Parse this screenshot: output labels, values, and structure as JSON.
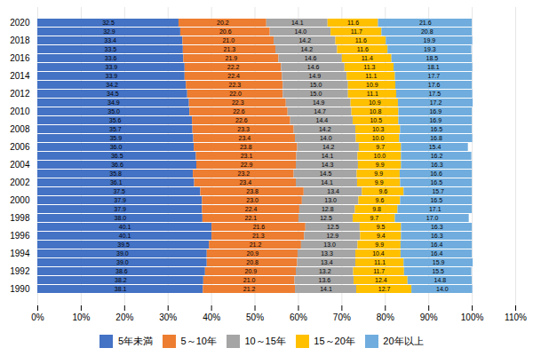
{
  "chart_data": {
    "type": "bar",
    "orientation": "horizontal",
    "stacked": true,
    "data_labels": true,
    "grid": true,
    "legend": "bottom",
    "categories": [
      "2020",
      null,
      "2018",
      null,
      "2016",
      null,
      "2014",
      null,
      "2012",
      null,
      "2010",
      null,
      "2008",
      null,
      "2006",
      null,
      "2004",
      null,
      "2002",
      null,
      "2000",
      null,
      "1998",
      null,
      "1996",
      null,
      "1994",
      null,
      "1992",
      null,
      "1990"
    ],
    "series": [
      {
        "name": "5年未満",
        "color": "#4472C4",
        "values": [
          32.5,
          32.9,
          33.4,
          33.5,
          33.6,
          33.9,
          33.9,
          34.2,
          34.5,
          34.9,
          35.0,
          35.6,
          35.7,
          35.9,
          36.0,
          36.5,
          36.6,
          35.8,
          36.1,
          37.5,
          37.9,
          37.9,
          38.0,
          40.1,
          40.1,
          39.5,
          39.0,
          39.0,
          38.6,
          38.2,
          38.1
        ],
        "value_labels": [
          "32.5",
          "32.9",
          "33.4",
          "33.5",
          "33.6",
          "33.9",
          "33.9",
          "34.2",
          "34.5",
          "34.9",
          "35.0",
          "35.6",
          "35.7",
          "35.9",
          "36.0",
          "36.5",
          "36.6",
          "35.8",
          "36.1",
          "37.5",
          "37.9",
          "37.9",
          "38.0",
          "40.1",
          "40.1",
          "39.5",
          "39.0",
          "39.0",
          "38.6",
          "38.2",
          "38.1"
        ]
      },
      {
        "name": "5～10年",
        "color": "#ED7D31",
        "values": [
          20.2,
          20.6,
          21.0,
          21.3,
          21.9,
          22.2,
          22.4,
          22.3,
          22.0,
          22.3,
          22.6,
          22.6,
          23.3,
          23.4,
          23.8,
          23.1,
          22.9,
          23.2,
          23.4,
          23.8,
          23.0,
          22.4,
          22.1,
          21.6,
          21.3,
          21.2,
          20.9,
          20.8,
          20.9,
          21.0,
          21.2
        ],
        "value_labels": [
          "20.2",
          "20.6",
          "21.0",
          "21.3",
          "21.9",
          "22.2",
          "22.4",
          "22.3",
          "22.0",
          "22.3",
          "22.6",
          "22.6",
          "23.3",
          "23.4",
          "23.8",
          "23.1",
          "22.9",
          "23.2",
          "23.4",
          "23.8",
          "23.0",
          "22.4",
          "22.1",
          "21.6",
          "21.3",
          "21.2",
          "20.9",
          "20.8",
          "20.9",
          "21.0",
          "21.2"
        ]
      },
      {
        "name": "10～15年",
        "color": "#A5A5A5",
        "values": [
          14.1,
          14.0,
          14.2,
          14.2,
          14.6,
          14.6,
          14.9,
          15.0,
          15.0,
          14.9,
          14.7,
          14.4,
          14.2,
          14.0,
          14.2,
          14.1,
          14.3,
          14.5,
          14.1,
          13.4,
          13.0,
          12.8,
          12.5,
          12.5,
          12.9,
          13.0,
          13.3,
          13.4,
          13.2,
          13.6,
          14.1
        ],
        "value_labels": [
          "14.1",
          "14.0",
          "14.2",
          "14.2",
          "14.6",
          "14.6",
          "14.9",
          "15.0",
          "15.0",
          "14.9",
          "14.7",
          "14.4",
          "14.2",
          "14.0",
          "14.2",
          "14.1",
          "14.3",
          "14.5",
          "14.1",
          "13.4",
          "13.0",
          "12.8",
          "12.5",
          "12.5",
          "12.9",
          "13.0",
          "13.3",
          "13.4",
          "13.2",
          "13.6",
          "14.1"
        ]
      },
      {
        "name": "15～20年",
        "color": "#FFC000",
        "values": [
          11.6,
          11.7,
          11.6,
          11.6,
          11.4,
          11.3,
          11.1,
          10.9,
          11.1,
          10.9,
          10.8,
          10.5,
          10.3,
          10.0,
          9.7,
          10.0,
          9.9,
          9.9,
          9.9,
          9.6,
          9.6,
          9.8,
          9.7,
          9.5,
          9.4,
          9.9,
          10.4,
          11.1,
          11.7,
          12.4,
          12.7
        ],
        "value_labels": [
          "11.6",
          "11.7",
          "11.6",
          "11.6",
          "11.4",
          "11.3",
          "11.1",
          "10.9",
          "11.1",
          "10.9",
          "10.8",
          "10.5",
          "10.3",
          "10.0",
          "9.7",
          "10.0",
          "9.9",
          "9.9",
          "9.9",
          "9.6",
          "9.6",
          "9.8",
          "9.7",
          "9.5",
          "9.4",
          "9.9",
          "10.4",
          "11.1",
          "11.7",
          "12.4",
          "12.7"
        ]
      },
      {
        "name": "20年以上",
        "color": "#70ADDE",
        "values": [
          21.6,
          20.8,
          19.9,
          19.3,
          18.5,
          18.1,
          17.7,
          17.6,
          17.5,
          17.2,
          16.9,
          16.9,
          16.5,
          16.8,
          15.4,
          16.2,
          16.3,
          16.6,
          16.5,
          15.7,
          16.5,
          17.1,
          17.0,
          16.3,
          16.3,
          16.4,
          16.4,
          15.9,
          15.5,
          14.8,
          14.0
        ],
        "value_labels": [
          "21.6",
          "20.8",
          "19.9",
          "19.3",
          "18.5",
          "18.1",
          "17.7",
          "17.6",
          "17.5",
          "17.2",
          "16.9",
          "16.9",
          "16.5",
          "16.8",
          "15.4",
          "16.2",
          "16.3",
          "16.6",
          "16.5",
          "15.7",
          "16.5",
          "17.1",
          "17.0",
          "16.3",
          "16.3",
          "16.4",
          "16.4",
          "15.9",
          "15.5",
          "14.8",
          "14.0"
        ]
      }
    ],
    "xlim": [
      0,
      110
    ],
    "xticks": [
      {
        "value": 0,
        "label": "0%"
      },
      {
        "value": 10,
        "label": "10%"
      },
      {
        "value": 20,
        "label": "20%"
      },
      {
        "value": 30,
        "label": "30%"
      },
      {
        "value": 40,
        "label": "40%"
      },
      {
        "value": 50,
        "label": "50%"
      },
      {
        "value": 60,
        "label": "60%"
      },
      {
        "value": 70,
        "label": "70%"
      },
      {
        "value": 80,
        "label": "80%"
      },
      {
        "value": 90,
        "label": "90%"
      },
      {
        "value": 100,
        "label": "100%"
      },
      {
        "value": 110,
        "label": "110%"
      }
    ]
  }
}
